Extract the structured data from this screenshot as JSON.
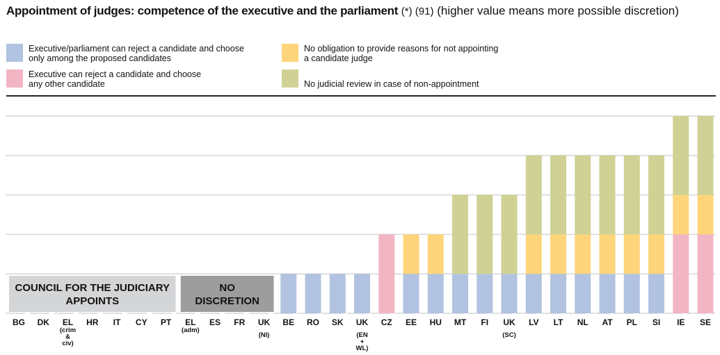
{
  "title": {
    "main": "Appointment of judges: competence of the executive and the parliament",
    "notes": "(*) (91)",
    "sub": "(higher value means more possible discretion)"
  },
  "legend": [
    {
      "label_line1": "Executive/parliament can reject a candidate and choose",
      "label_line2": "only among the proposed candidates",
      "color": "#b1c3e0"
    },
    {
      "label_line1": "Executive can reject a candidate and choose",
      "label_line2": "any other candidate",
      "color": "#f2b5c3"
    },
    {
      "label_line1": "No obligation to provide reasons for not appointing",
      "label_line2": "a candidate judge",
      "color": "#fed57a"
    },
    {
      "label_line1": "",
      "label_line2": "No judicial review in case of non-appointment",
      "color": "#cfd294"
    }
  ],
  "chart_data": {
    "type": "bar",
    "stacked": true,
    "ylim": [
      0,
      5
    ],
    "grid": true,
    "categories": [
      {
        "code": "BG",
        "sub": ""
      },
      {
        "code": "DK",
        "sub": ""
      },
      {
        "code": "EL",
        "sub": "(crim\n&\nciv)"
      },
      {
        "code": "HR",
        "sub": ""
      },
      {
        "code": "IT",
        "sub": ""
      },
      {
        "code": "CY",
        "sub": ""
      },
      {
        "code": "PT",
        "sub": ""
      },
      {
        "code": "EL",
        "sub": "(adm)"
      },
      {
        "code": "ES",
        "sub": ""
      },
      {
        "code": "FR",
        "sub": ""
      },
      {
        "code": "UK",
        "sub": "(NI)"
      },
      {
        "code": "BE",
        "sub": ""
      },
      {
        "code": "RO",
        "sub": ""
      },
      {
        "code": "SK",
        "sub": ""
      },
      {
        "code": "UK",
        "sub": "(EN\n+\nWL)"
      },
      {
        "code": "CZ",
        "sub": ""
      },
      {
        "code": "EE",
        "sub": ""
      },
      {
        "code": "HU",
        "sub": ""
      },
      {
        "code": "MT",
        "sub": ""
      },
      {
        "code": "FI",
        "sub": ""
      },
      {
        "code": "UK",
        "sub": "(SC)"
      },
      {
        "code": "LV",
        "sub": ""
      },
      {
        "code": "LT",
        "sub": ""
      },
      {
        "code": "NL",
        "sub": ""
      },
      {
        "code": "AT",
        "sub": ""
      },
      {
        "code": "PL",
        "sub": ""
      },
      {
        "code": "SI",
        "sub": ""
      },
      {
        "code": "IE",
        "sub": ""
      },
      {
        "code": "SE",
        "sub": ""
      }
    ],
    "series": [
      {
        "name": "Executive/parliament can reject a candidate and choose only among the proposed candidates",
        "color": "#b1c3e0",
        "values": [
          0,
          0,
          0,
          0,
          0,
          0,
          0,
          0,
          0,
          0,
          0,
          1,
          1,
          1,
          1,
          0,
          1,
          1,
          1,
          1,
          1,
          1,
          1,
          1,
          1,
          1,
          1,
          0,
          0
        ]
      },
      {
        "name": "Executive can reject a candidate and choose any other candidate",
        "color": "#f2b5c3",
        "values": [
          0,
          0,
          0,
          0,
          0,
          0,
          0,
          0,
          0,
          0,
          0,
          0,
          0,
          0,
          0,
          2,
          0,
          0,
          0,
          0,
          0,
          0,
          0,
          0,
          0,
          0,
          0,
          2,
          2
        ]
      },
      {
        "name": "No obligation to provide reasons for not appointing a candidate judge",
        "color": "#fed57a",
        "values": [
          0,
          0,
          0,
          0,
          0,
          0,
          0,
          0,
          0,
          0,
          0,
          0,
          0,
          0,
          0,
          0,
          1,
          1,
          0,
          0,
          0,
          1,
          1,
          1,
          1,
          1,
          1,
          1,
          1
        ]
      },
      {
        "name": "No judicial review in case of non-appointment",
        "color": "#cfd294",
        "values": [
          0,
          0,
          0,
          0,
          0,
          0,
          0,
          0,
          0,
          0,
          0,
          0,
          0,
          0,
          0,
          0,
          0,
          0,
          2,
          2,
          2,
          2,
          2,
          2,
          2,
          2,
          2,
          2,
          2
        ]
      }
    ],
    "annotations": [
      {
        "text_line1": "COUNCIL FOR THE JUDICIARY",
        "text_line2": "APPOINTS",
        "from": 0,
        "to": 6,
        "color": "#d4d5d7"
      },
      {
        "text_line1": "NO",
        "text_line2": "DISCRETION",
        "from": 7,
        "to": 10,
        "color": "#9d9d9d"
      }
    ]
  }
}
